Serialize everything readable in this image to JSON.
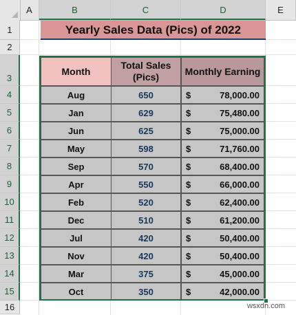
{
  "columns": [
    "A",
    "B",
    "C",
    "D",
    "E"
  ],
  "rows": [
    "1",
    "2",
    "3",
    "4",
    "5",
    "6",
    "7",
    "8",
    "9",
    "10",
    "11",
    "12",
    "13",
    "14",
    "15",
    "16"
  ],
  "title": "Yearly Sales Data (Pics) of 2022",
  "headers": {
    "month": "Month",
    "sales": "Total Sales (Pics)",
    "earning": "Monthly Earning"
  },
  "currency_symbol": "$",
  "table": [
    {
      "month": "Aug",
      "sales": "650",
      "earning": "78,000.00"
    },
    {
      "month": "Jan",
      "sales": "629",
      "earning": "75,480.00"
    },
    {
      "month": "Jun",
      "sales": "625",
      "earning": "75,000.00"
    },
    {
      "month": "May",
      "sales": "598",
      "earning": "71,760.00"
    },
    {
      "month": "Sep",
      "sales": "570",
      "earning": "68,400.00"
    },
    {
      "month": "Apr",
      "sales": "550",
      "earning": "66,000.00"
    },
    {
      "month": "Feb",
      "sales": "520",
      "earning": "62,400.00"
    },
    {
      "month": "Dec",
      "sales": "510",
      "earning": "61,200.00"
    },
    {
      "month": "Jul",
      "sales": "420",
      "earning": "50,400.00"
    },
    {
      "month": "Nov",
      "sales": "420",
      "earning": "50,400.00"
    },
    {
      "month": "Mar",
      "sales": "375",
      "earning": "45,000.00"
    },
    {
      "month": "Oct",
      "sales": "350",
      "earning": "42,000.00"
    }
  ],
  "watermark": "wsxdn.com",
  "colors": {
    "title_bg": "#d99694",
    "month_header_bg": "#f2c2c0",
    "sales_header_bg": "#c0a0a0",
    "earning_header_bg": "#b89898",
    "cell_bg": "#c6c6c6",
    "selection": "#217346"
  }
}
